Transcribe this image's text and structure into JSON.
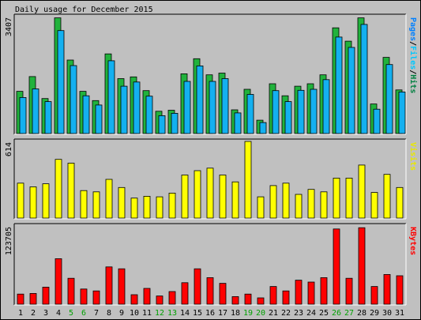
{
  "chart_data": {
    "type": "bar",
    "title": "Daily usage for December 2015",
    "categories": [
      "1",
      "2",
      "3",
      "4",
      "5",
      "6",
      "7",
      "8",
      "9",
      "10",
      "11",
      "12",
      "13",
      "14",
      "15",
      "16",
      "17",
      "18",
      "19",
      "20",
      "21",
      "22",
      "23",
      "24",
      "25",
      "26",
      "27",
      "28",
      "29",
      "30",
      "31"
    ],
    "weekend_days": [
      "5",
      "6",
      "12",
      "13",
      "19",
      "20",
      "26",
      "27"
    ],
    "panels": [
      {
        "name": "hits",
        "max_label": "3407",
        "ylim": [
          0,
          3407
        ],
        "legend": [
          {
            "text": "Pages",
            "color": "#0080ff"
          },
          {
            "text": "/",
            "color": "#000000"
          },
          {
            "text": "Files",
            "color": "#00c8ff"
          },
          {
            "text": "/",
            "color": "#000000"
          },
          {
            "text": "Hits",
            "color": "#008040"
          }
        ],
        "series": [
          {
            "name": "Hits",
            "color": "#21b23c",
            "values": [
              1230,
              1660,
              1020,
              3370,
              2140,
              1230,
              960,
              2320,
              1600,
              1650,
              1250,
              650,
              680,
              1740,
              2180,
              1710,
              1760,
              690,
              1290,
              390,
              1450,
              1100,
              1380,
              1450,
              1710,
              3080,
              2690,
              3370,
              860,
              2220,
              1270
            ]
          },
          {
            "name": "Files",
            "color": "#14b0f0",
            "values": [
              1050,
              1300,
              930,
              3000,
              1980,
              1100,
              830,
              2120,
              1380,
              1500,
              1090,
              520,
              590,
              1520,
              1970,
              1520,
              1600,
              600,
              1140,
              320,
              1250,
              930,
              1260,
              1290,
              1570,
              2810,
              2510,
              3180,
              710,
              2010,
              1210
            ]
          }
        ]
      },
      {
        "name": "visits",
        "max_label": "614",
        "ylim": [
          0,
          614
        ],
        "legend": [
          {
            "text": "Visits",
            "color": "#e8e800"
          }
        ],
        "series": [
          {
            "name": "Visits",
            "color": "#ffff00",
            "values": [
              280,
              250,
              275,
              470,
              440,
              220,
              210,
              310,
              245,
              160,
              175,
              170,
              200,
              345,
              380,
              400,
              345,
              290,
              614,
              170,
              260,
              280,
              190,
              230,
              210,
              320,
              320,
              425,
              205,
              350,
              245
            ]
          }
        ]
      },
      {
        "name": "kbytes",
        "max_label": "123705",
        "ylim": [
          0,
          123705
        ],
        "legend": [
          {
            "text": "KBytes",
            "color": "#ff0000"
          }
        ],
        "series": [
          {
            "name": "KBytes",
            "color": "#ff0000",
            "values": [
              16000,
              17000,
              27000,
              72000,
              41000,
              24000,
              21000,
              59000,
              56000,
              15000,
              25000,
              13000,
              20000,
              34000,
              56000,
              42000,
              33000,
              12000,
              16000,
              10000,
              28000,
              21000,
              38000,
              35000,
              42000,
              119000,
              41000,
              121000,
              28000,
              47000,
              45000
            ]
          }
        ]
      }
    ]
  }
}
